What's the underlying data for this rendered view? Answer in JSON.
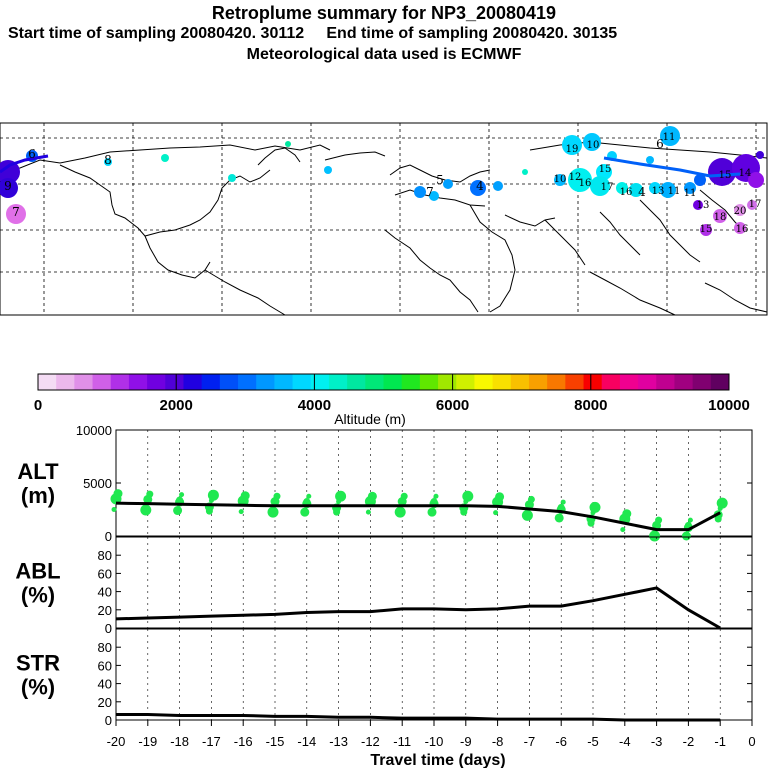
{
  "header": {
    "title": "Retroplume summary for NP3_20080419",
    "subtitle_line1": "Start time of sampling 20080420. 30112     End time of sampling 20080420. 30135",
    "subtitle_line2": "Meteorological data used is ECMWF"
  },
  "map": {
    "plume_labels": [
      "19",
      "10",
      "16",
      "17",
      "16",
      "4",
      "13",
      "11",
      "11",
      "13",
      "12",
      "15",
      "10",
      "11",
      "6",
      "15",
      "14",
      "18",
      "20",
      "15",
      "16",
      "17",
      "7",
      "4",
      "5",
      "6",
      "8",
      "9",
      "7"
    ]
  },
  "colorbar": {
    "label": "Altitude (m)",
    "ticks": [
      "0",
      "2000",
      "4000",
      "6000",
      "8000",
      "10000"
    ],
    "colors": [
      "#f4dcf4",
      "#ecb8ec",
      "#e090e8",
      "#d060e8",
      "#b030e8",
      "#9010e8",
      "#7000e0",
      "#5000d8",
      "#2000e0",
      "#0020f0",
      "#0050f8",
      "#0070ff",
      "#0098ff",
      "#00b8ff",
      "#00d8ff",
      "#00f0f0",
      "#00f0c8",
      "#00e8a0",
      "#00e878",
      "#00e850",
      "#20e820",
      "#60e800",
      "#a0e800",
      "#d0f000",
      "#f8f800",
      "#f8e000",
      "#f8c000",
      "#f8a000",
      "#f87800",
      "#f84000",
      "#f80000",
      "#f80060",
      "#f00090",
      "#e000a0",
      "#c00090",
      "#a00080",
      "#800070",
      "#600060"
    ]
  },
  "chart_data": [
    {
      "type": "line",
      "panel": "ALT",
      "ylabel_line1": "ALT",
      "ylabel_line2": "(m)",
      "yticks": [
        "10000",
        "5000",
        "0"
      ],
      "ylim": [
        0,
        10000
      ],
      "x": [
        -20,
        -19,
        -18,
        -17,
        -16,
        -15,
        -14,
        -13,
        -12,
        -11,
        -10,
        -9,
        -8,
        -7,
        -6,
        -5,
        -4,
        -3,
        -2,
        -1
      ],
      "values": [
        3100,
        3050,
        3000,
        2950,
        2900,
        2850,
        2850,
        2850,
        2850,
        2850,
        2850,
        2850,
        2800,
        2550,
        2300,
        1800,
        1200,
        600,
        600,
        2200
      ]
    },
    {
      "type": "line",
      "panel": "ABL",
      "ylabel_line1": "ABL",
      "ylabel_line2": "(%)",
      "yticks": [
        "80",
        "60",
        "40",
        "20",
        "0"
      ],
      "ylim": [
        0,
        100
      ],
      "x": [
        -20,
        -19,
        -18,
        -17,
        -16,
        -15,
        -14,
        -13,
        -12,
        -11,
        -10,
        -9,
        -8,
        -7,
        -6,
        -5,
        -4,
        -3,
        -2,
        -1
      ],
      "values": [
        10,
        11,
        12,
        13,
        14,
        15,
        17,
        18,
        18,
        21,
        21,
        20,
        21,
        24,
        24,
        30,
        37,
        44,
        20,
        0
      ]
    },
    {
      "type": "line",
      "panel": "STR",
      "ylabel_line1": "STR",
      "ylabel_line2": "(%)",
      "yticks": [
        "80",
        "60",
        "40",
        "20",
        "0"
      ],
      "ylim": [
        0,
        100
      ],
      "x": [
        -20,
        -19,
        -18,
        -17,
        -16,
        -15,
        -14,
        -13,
        -12,
        -11,
        -10,
        -9,
        -8,
        -7,
        -6,
        -5,
        -4,
        -3,
        -2,
        -1
      ],
      "values": [
        6,
        6,
        5,
        5,
        5,
        4,
        4,
        3,
        3,
        2,
        2,
        2,
        1,
        1,
        1,
        1,
        0,
        0,
        0,
        0
      ]
    }
  ],
  "xaxis": {
    "ticks": [
      "-20",
      "-19",
      "-18",
      "-17",
      "-16",
      "-15",
      "-14",
      "-13",
      "-12",
      "-11",
      "-10",
      "-9",
      "-8",
      "-7",
      "-6",
      "-5",
      "-4",
      "-3",
      "-2",
      "-1",
      "0"
    ],
    "label": "Travel time (days)"
  }
}
